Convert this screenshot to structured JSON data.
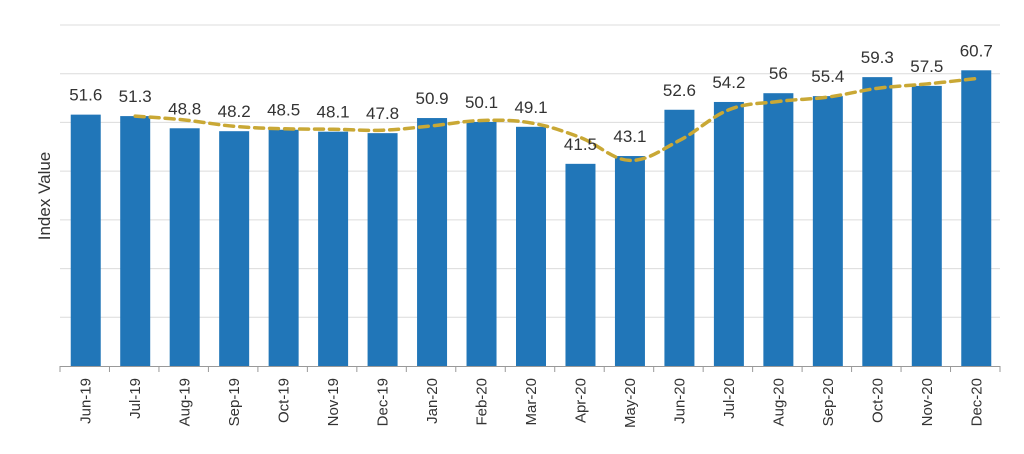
{
  "chart_data": {
    "type": "bar",
    "ylabel": "Index Value",
    "ylim": [
      0,
      70
    ],
    "grid": true,
    "categories": [
      "Jun-19",
      "Jul-19",
      "Aug-19",
      "Sep-19",
      "Oct-19",
      "Nov-19",
      "Dec-19",
      "Jan-20",
      "Feb-20",
      "Mar-20",
      "Apr-20",
      "May-20",
      "Jun-20",
      "Jul-20",
      "Aug-20",
      "Sep-20",
      "Oct-20",
      "Nov-20",
      "Dec-20"
    ],
    "series": [
      {
        "type": "bar",
        "color": "#2176b8",
        "values": [
          51.6,
          51.3,
          48.8,
          48.2,
          48.5,
          48.1,
          47.8,
          50.9,
          50.1,
          49.1,
          41.5,
          43.1,
          52.6,
          54.2,
          56,
          55.4,
          59.3,
          57.5,
          60.7
        ]
      },
      {
        "type": "line",
        "style": "dashed",
        "color": "#c9a835",
        "values": [
          null,
          51.3,
          50.5,
          49.2,
          48.7,
          48.6,
          48.4,
          49.3,
          50.4,
          49.9,
          46.9,
          42.2,
          46.3,
          52.6,
          54.3,
          55.2,
          57.0,
          57.9,
          59.0
        ]
      }
    ]
  }
}
